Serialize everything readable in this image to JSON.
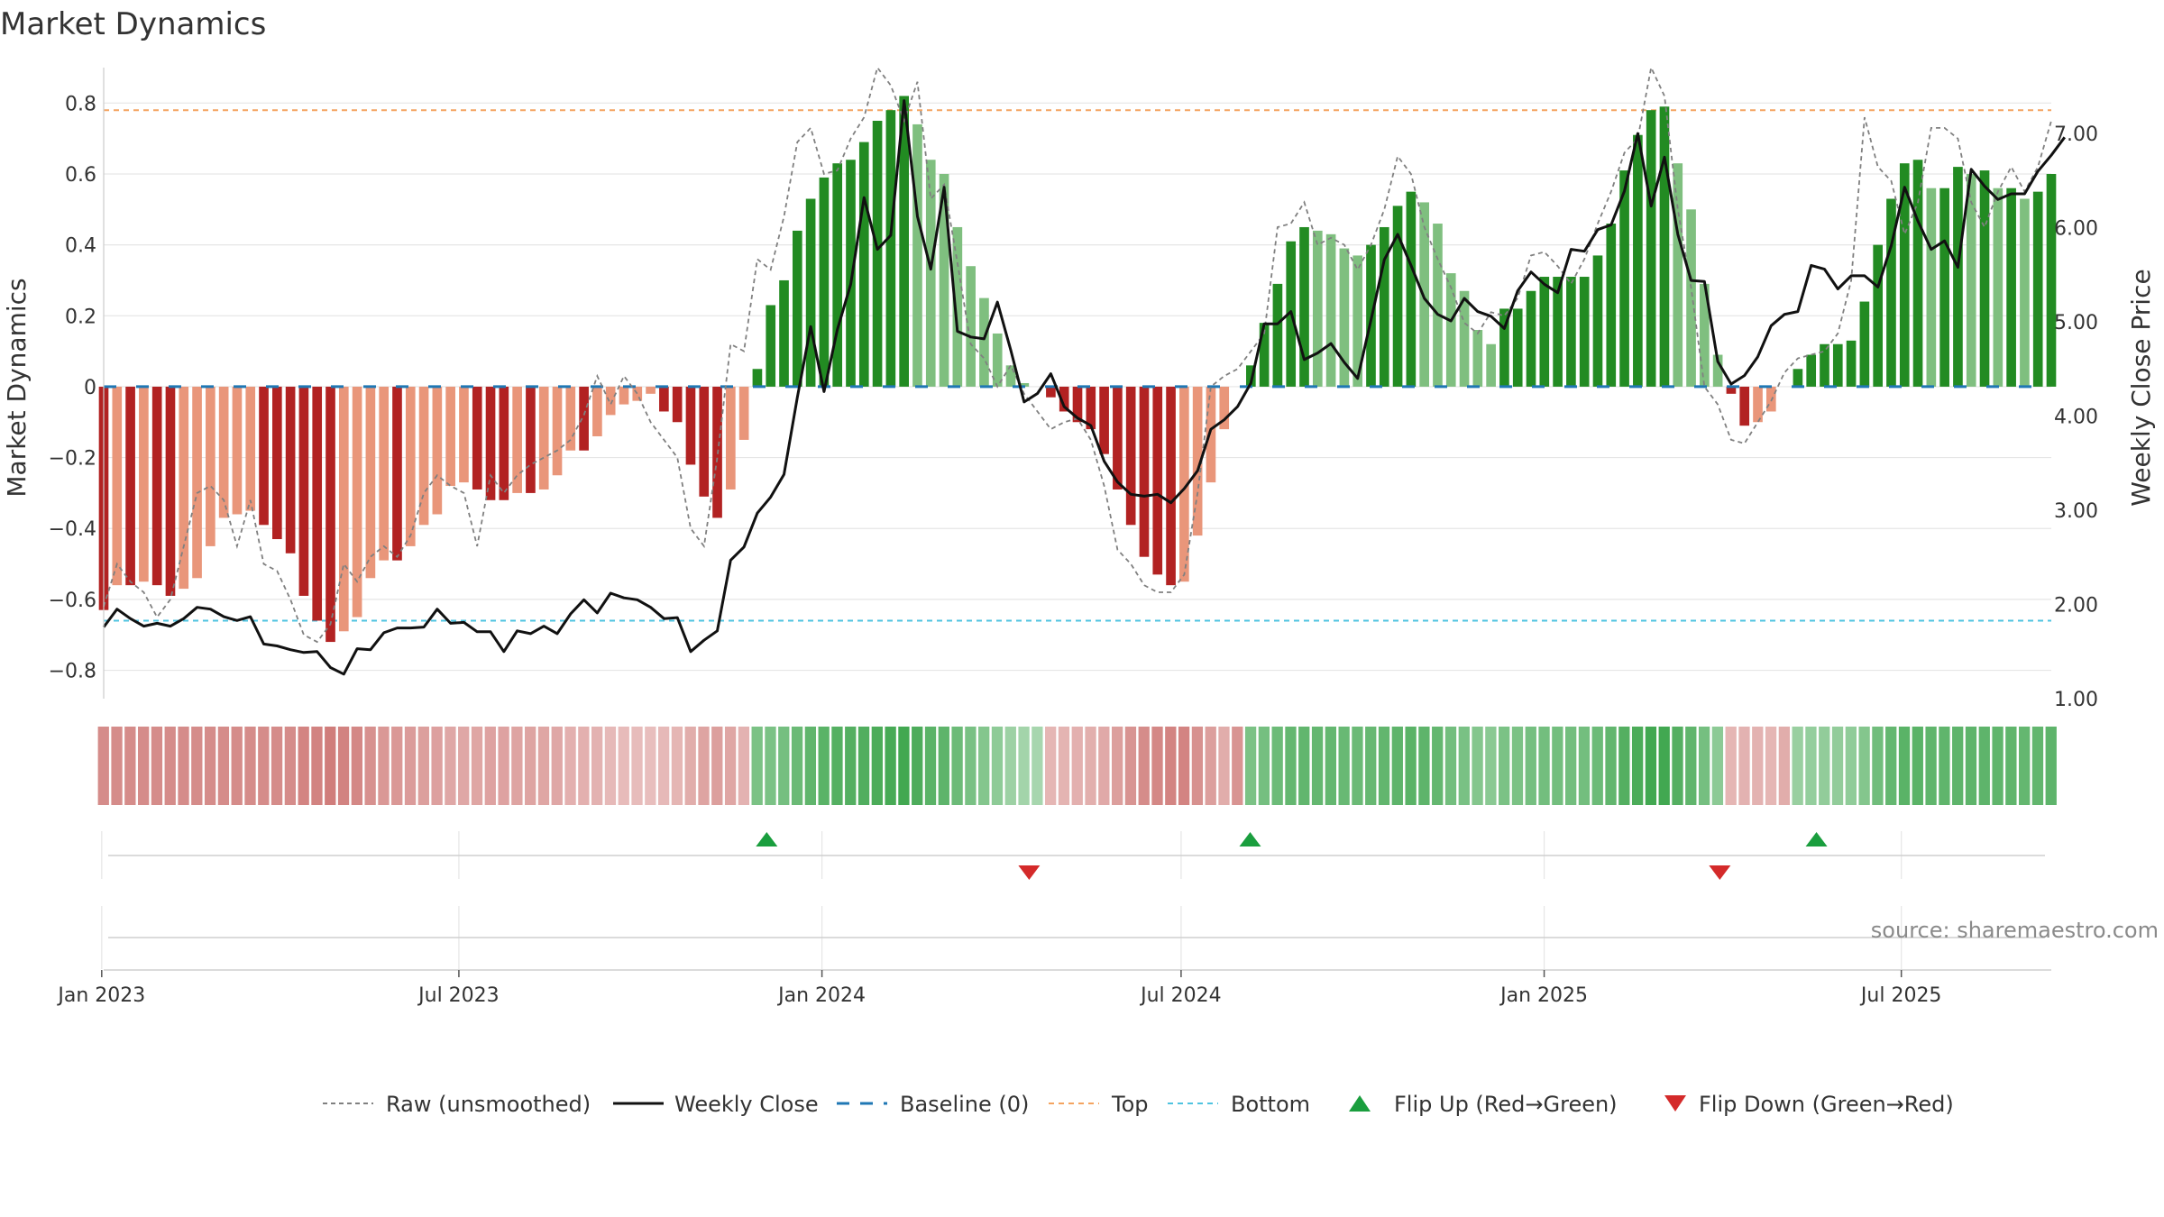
{
  "title": "Market Dynamics",
  "source_text": "source: sharemaestro.com",
  "colors": {
    "strong_green": "#228b22",
    "light_green": "#7fbf7f",
    "strong_red": "#b22222",
    "light_red": "#e9967a",
    "raw_line": "#808080",
    "close_line": "#111111",
    "baseline": "#1f77b4",
    "top": "#f4a460",
    "bottom": "#4fc3e0",
    "flip_up": "#1a9e3e",
    "flip_down": "#d42a2a",
    "grid": "#e6e6e6"
  },
  "chart_data": {
    "type": "bar",
    "start_date": "2023-01-02",
    "end_date": "2025-09-15",
    "x_ticks": [
      "Jan 2023",
      "Jul 2023",
      "Jan 2024",
      "Jul 2024",
      "Jan 2025",
      "Jul 2025"
    ],
    "x_tick_dates": [
      "2023-01-01",
      "2023-07-01",
      "2024-01-01",
      "2024-07-01",
      "2025-01-01",
      "2025-07-01"
    ],
    "y_left": {
      "label": "Market Dynamics",
      "lim": [
        -0.88,
        0.9
      ],
      "ticks": [
        -0.8,
        -0.6,
        -0.4,
        -0.2,
        0,
        0.2,
        0.4,
        0.6,
        0.8
      ],
      "tick_labels": [
        "−0.8",
        "−0.6",
        "−0.4",
        "−0.2",
        "0",
        "0.2",
        "0.4",
        "0.6",
        "0.8"
      ]
    },
    "y_right": {
      "label": "Weekly Close Price",
      "lim": [
        1.0,
        7.7
      ],
      "ticks": [
        1,
        2,
        3,
        4,
        5,
        6,
        7
      ],
      "tick_labels": [
        "1.00",
        "2.00",
        "3.00",
        "4.00",
        "5.00",
        "6.00",
        "7.00"
      ]
    },
    "top_level": 0.78,
    "bottom_level": -0.66,
    "baseline_level": 0,
    "market_dynamics": [
      -0.63,
      -0.56,
      -0.56,
      -0.55,
      -0.56,
      -0.59,
      -0.57,
      -0.54,
      -0.45,
      -0.37,
      -0.36,
      -0.35,
      -0.39,
      -0.43,
      -0.47,
      -0.59,
      -0.66,
      -0.72,
      -0.69,
      -0.65,
      -0.54,
      -0.49,
      -0.49,
      -0.45,
      -0.39,
      -0.36,
      -0.28,
      -0.27,
      -0.29,
      -0.32,
      -0.32,
      -0.3,
      -0.3,
      -0.29,
      -0.25,
      -0.18,
      -0.18,
      -0.14,
      -0.08,
      -0.05,
      -0.04,
      -0.02,
      -0.07,
      -0.1,
      -0.22,
      -0.31,
      -0.37,
      -0.29,
      -0.15,
      0.05,
      0.23,
      0.3,
      0.44,
      0.53,
      0.59,
      0.63,
      0.64,
      0.69,
      0.75,
      0.78,
      0.82,
      0.74,
      0.64,
      0.6,
      0.45,
      0.34,
      0.25,
      0.15,
      0.06,
      0.01,
      0.0,
      -0.03,
      -0.07,
      -0.1,
      -0.12,
      -0.19,
      -0.29,
      -0.39,
      -0.48,
      -0.53,
      -0.56,
      -0.55,
      -0.42,
      -0.27,
      -0.12,
      0.0,
      0.06,
      0.18,
      0.29,
      0.41,
      0.45,
      0.44,
      0.43,
      0.39,
      0.37,
      0.4,
      0.45,
      0.51,
      0.55,
      0.52,
      0.46,
      0.32,
      0.27,
      0.16,
      0.12,
      0.22,
      0.22,
      0.27,
      0.31,
      0.31,
      0.31,
      0.31,
      0.37,
      0.46,
      0.61,
      0.71,
      0.78,
      0.79,
      0.63,
      0.5,
      0.29,
      0.09,
      -0.02,
      -0.11,
      -0.1,
      -0.07,
      0.0,
      0.05,
      0.09,
      0.12,
      0.12,
      0.13,
      0.24,
      0.4,
      0.53,
      0.63,
      0.64,
      0.56,
      0.56,
      0.62,
      0.6,
      0.61,
      0.56,
      0.56,
      0.53,
      0.55,
      0.6
    ],
    "weekly_close": [
      1.76,
      1.95,
      1.85,
      1.77,
      1.8,
      1.77,
      1.85,
      1.97,
      1.95,
      1.87,
      1.83,
      1.87,
      1.58,
      1.56,
      1.52,
      1.49,
      1.5,
      1.33,
      1.26,
      1.53,
      1.52,
      1.7,
      1.75,
      1.75,
      1.76,
      1.95,
      1.8,
      1.81,
      1.71,
      1.71,
      1.5,
      1.72,
      1.69,
      1.77,
      1.69,
      1.9,
      2.05,
      1.91,
      2.12,
      2.07,
      2.05,
      1.97,
      1.85,
      1.86,
      1.5,
      1.62,
      1.72,
      2.47,
      2.61,
      2.97,
      3.14,
      3.38,
      4.2,
      4.95,
      4.26,
      4.92,
      5.4,
      6.32,
      5.77,
      5.92,
      7.35,
      6.12,
      5.56,
      6.43,
      4.9,
      4.84,
      4.82,
      5.21,
      4.7,
      4.15,
      4.24,
      4.45,
      4.1,
      3.98,
      3.9,
      3.52,
      3.3,
      3.17,
      3.15,
      3.17,
      3.08,
      3.23,
      3.42,
      3.86,
      3.96,
      4.1,
      4.35,
      4.98,
      4.98,
      5.11,
      4.6,
      4.67,
      4.77,
      4.57,
      4.4,
      5.02,
      5.66,
      5.93,
      5.6,
      5.25,
      5.08,
      5.01,
      5.25,
      5.11,
      5.06,
      4.93,
      5.33,
      5.53,
      5.4,
      5.31,
      5.77,
      5.75,
      5.98,
      6.03,
      6.39,
      7.0,
      6.23,
      6.75,
      5.93,
      5.44,
      5.43,
      4.58,
      4.34,
      4.43,
      4.63,
      4.96,
      5.08,
      5.11,
      5.6,
      5.56,
      5.35,
      5.49,
      5.49,
      5.37,
      5.81,
      6.43,
      6.07,
      5.77,
      5.86,
      5.58,
      6.62,
      6.44,
      6.3,
      6.36,
      6.36,
      6.6,
      6.77,
      6.96
    ],
    "raw_unsmoothed": [
      -0.62,
      -0.5,
      -0.55,
      -0.58,
      -0.65,
      -0.6,
      -0.45,
      -0.3,
      -0.28,
      -0.32,
      -0.45,
      -0.32,
      -0.5,
      -0.52,
      -0.6,
      -0.7,
      -0.72,
      -0.67,
      -0.5,
      -0.55,
      -0.48,
      -0.45,
      -0.48,
      -0.42,
      -0.3,
      -0.25,
      -0.28,
      -0.3,
      -0.45,
      -0.25,
      -0.3,
      -0.25,
      -0.22,
      -0.2,
      -0.18,
      -0.15,
      -0.08,
      0.03,
      -0.05,
      0.03,
      -0.02,
      -0.1,
      -0.15,
      -0.2,
      -0.4,
      -0.45,
      -0.2,
      0.12,
      0.1,
      0.36,
      0.33,
      0.48,
      0.69,
      0.73,
      0.6,
      0.61,
      0.7,
      0.76,
      0.9,
      0.85,
      0.75,
      0.86,
      0.53,
      0.57,
      0.35,
      0.12,
      0.08,
      0.0,
      0.06,
      -0.02,
      -0.07,
      -0.12,
      -0.1,
      -0.09,
      -0.15,
      -0.28,
      -0.46,
      -0.5,
      -0.56,
      -0.58,
      -0.58,
      -0.53,
      -0.3,
      0.0,
      0.03,
      0.05,
      0.1,
      0.15,
      0.45,
      0.46,
      0.52,
      0.4,
      0.42,
      0.4,
      0.33,
      0.4,
      0.5,
      0.65,
      0.6,
      0.45,
      0.36,
      0.28,
      0.18,
      0.15,
      0.21,
      0.2,
      0.25,
      0.37,
      0.38,
      0.34,
      0.29,
      0.36,
      0.46,
      0.55,
      0.66,
      0.7,
      0.9,
      0.82,
      0.5,
      0.28,
      0.0,
      -0.05,
      -0.15,
      -0.16,
      -0.1,
      -0.04,
      0.04,
      0.08,
      0.09,
      0.1,
      0.15,
      0.3,
      0.76,
      0.62,
      0.58,
      0.43,
      0.52,
      0.73,
      0.73,
      0.7,
      0.52,
      0.45,
      0.55,
      0.62,
      0.55,
      0.62,
      0.75
    ],
    "strength": [
      0.55,
      0.55,
      0.55,
      0.55,
      0.55,
      0.55,
      0.55,
      0.55,
      0.55,
      0.55,
      0.55,
      0.55,
      0.55,
      0.55,
      0.55,
      0.6,
      0.62,
      0.65,
      0.62,
      0.58,
      0.5,
      0.45,
      0.45,
      0.43,
      0.4,
      0.38,
      0.33,
      0.33,
      0.35,
      0.37,
      0.37,
      0.36,
      0.36,
      0.35,
      0.33,
      0.27,
      0.27,
      0.25,
      0.2,
      0.18,
      0.17,
      0.16,
      0.2,
      0.22,
      0.3,
      0.36,
      0.4,
      0.35,
      0.25,
      0.5,
      0.5,
      0.55,
      0.62,
      0.68,
      0.72,
      0.75,
      0.76,
      0.78,
      0.82,
      0.84,
      0.86,
      0.8,
      0.72,
      0.7,
      0.6,
      0.52,
      0.45,
      0.38,
      0.3,
      0.25,
      0.22,
      0.22,
      0.24,
      0.26,
      0.28,
      0.32,
      0.4,
      0.48,
      0.55,
      0.58,
      0.6,
      0.6,
      0.5,
      0.4,
      0.3,
      0.48,
      0.5,
      0.55,
      0.6,
      0.65,
      0.67,
      0.66,
      0.66,
      0.63,
      0.62,
      0.64,
      0.67,
      0.7,
      0.72,
      0.7,
      0.66,
      0.56,
      0.52,
      0.45,
      0.42,
      0.5,
      0.5,
      0.54,
      0.56,
      0.56,
      0.56,
      0.56,
      0.6,
      0.67,
      0.76,
      0.82,
      0.86,
      0.86,
      0.76,
      0.68,
      0.54,
      0.4,
      0.22,
      0.25,
      0.25,
      0.22,
      0.3,
      0.32,
      0.34,
      0.36,
      0.36,
      0.37,
      0.45,
      0.58,
      0.66,
      0.72,
      0.72,
      0.68,
      0.68,
      0.7,
      0.69,
      0.7,
      0.68,
      0.68,
      0.66,
      0.67,
      0.7
    ],
    "flip_up_dates": [
      "2023-12-04",
      "2024-08-05",
      "2025-05-19"
    ],
    "flip_down_dates": [
      "2024-04-15",
      "2025-03-31"
    ]
  },
  "legend": {
    "raw": "Raw (unsmoothed)",
    "close": "Weekly Close",
    "baseline": "Baseline (0)",
    "top": "Top",
    "bottom": "Bottom",
    "flip_up": "Flip Up (Red→Green)",
    "flip_down": "Flip Down (Green→Red)"
  }
}
